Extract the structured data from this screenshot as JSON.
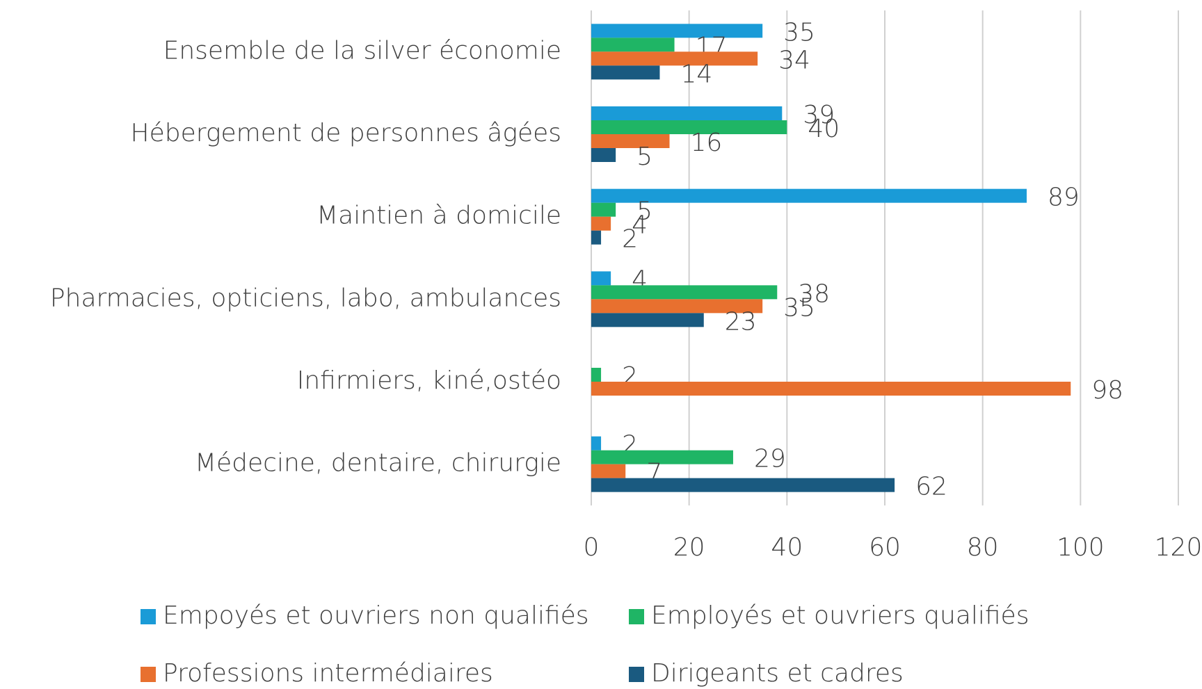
{
  "chart_data": {
    "type": "barh",
    "categories": [
      "Ensemble de la silver économie",
      "Hébergement de personnes âgées",
      "Maintien à domicile",
      "Pharmacies, opticiens, labo, ambulances",
      "Infirmiers, kiné,ostéo",
      "Médecine, dentaire, chirurgie"
    ],
    "series": [
      {
        "name": "Empoyés et ouvriers non qualifiés",
        "color": "#1a9bd7",
        "values": [
          35,
          39,
          89,
          4,
          null,
          2
        ]
      },
      {
        "name": "Employés et ouvriers qualifiés",
        "color": "#1fb565",
        "values": [
          17,
          40,
          5,
          38,
          2,
          29
        ]
      },
      {
        "name": "Professions intermédiaires",
        "color": "#e8702f",
        "values": [
          34,
          16,
          4,
          35,
          98,
          7
        ]
      },
      {
        "name": "Dirigeants et cadres",
        "color": "#1a5a80",
        "values": [
          14,
          5,
          2,
          23,
          null,
          62
        ]
      }
    ],
    "xlim": [
      0,
      120
    ],
    "xticks": [
      0,
      20,
      40,
      60,
      80,
      100,
      120
    ],
    "grid": true,
    "legend": "bottom"
  }
}
